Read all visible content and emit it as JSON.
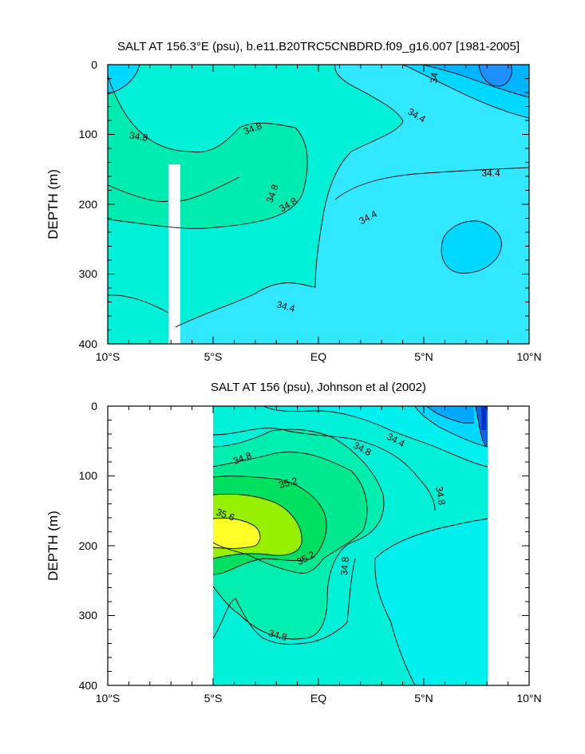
{
  "charts": [
    {
      "title": "SALT AT 156.3°E (psu), b.e11.B20TRC5CNBDRD.f09_g16.007 [1981-2005]",
      "ylabel": "DEPTH (m)",
      "x_ticks": [
        "10°S",
        "5°S",
        "EQ",
        "5°N",
        "10°N"
      ],
      "y_ticks": [
        "0",
        "100",
        "200",
        "300",
        "400"
      ],
      "contour_labels": [
        "34",
        "34.4",
        "34.8",
        "34.8",
        "34.8",
        "34.8",
        "34.4",
        "34.4",
        "34.4"
      ]
    },
    {
      "title": "SALT AT 156 (psu), Johnson et al (2002)",
      "ylabel": "DEPTH (m)",
      "x_ticks": [
        "10°S",
        "5°S",
        "EQ",
        "5°N",
        "10°N"
      ],
      "y_ticks": [
        "0",
        "100",
        "200",
        "300",
        "400"
      ],
      "contour_labels": [
        "34.8",
        "34.8",
        "34.4",
        "35.2",
        "35.6",
        "35.2",
        "34.8",
        "34.8",
        "34.8"
      ]
    }
  ],
  "chart_data": [
    {
      "type": "heatmap",
      "subtype": "filled-contour",
      "title": "SALT AT 156.3°E (psu), b.e11.B20TRC5CNBDRD.f09_g16.007 [1981-2005]",
      "xlabel": "",
      "ylabel": "DEPTH (m)",
      "xlim": [
        -10,
        10
      ],
      "ylim": [
        400,
        0
      ],
      "x_ticks": [
        -10,
        -5,
        0,
        5,
        10
      ],
      "y_ticks": [
        0,
        100,
        200,
        300,
        400
      ],
      "contour_interval": 0.2,
      "colors": {
        "33.8-34.0": "#1e90ff",
        "34.0-34.2": "#00b4ff",
        "34.2-34.4": "#00d8ff",
        "34.4-34.6": "#30e8ff",
        "34.6-34.8": "#00f0d8",
        "34.8-35.0": "#00ebb0"
      },
      "levels_labeled": [
        34.0,
        34.4,
        34.8
      ],
      "features": [
        {
          "value": 34.85,
          "location": "x -10 to -1, depth 80-250 m (salinity maximum core)"
        },
        {
          "value": 34.0,
          "location": "x 6 to 10, depth 0-50 m (surface fresh pool)"
        },
        {
          "value": 34.3,
          "location": "x 6 to 9, depth 240-300 m (subsurface minimum)"
        }
      ]
    },
    {
      "type": "heatmap",
      "subtype": "filled-contour",
      "title": "SALT AT 156 (psu), Johnson et al (2002)",
      "xlabel": "",
      "ylabel": "DEPTH (m)",
      "xlim": [
        -10,
        10
      ],
      "ylim": [
        400,
        0
      ],
      "data_extent_x": [
        -5,
        8
      ],
      "x_ticks": [
        -10,
        -5,
        0,
        5,
        10
      ],
      "y_ticks": [
        0,
        100,
        200,
        300,
        400
      ],
      "contour_interval": 0.2,
      "colors": {
        "<34.0": "#1464e6",
        "34.0-34.2": "#00a8ff",
        "34.2-34.4": "#00d8ff",
        "34.4-34.6": "#00f0f0",
        "34.6-34.8": "#00f0d8",
        "34.8-35.0": "#00eeb0",
        "35.0-35.2": "#00e890",
        "35.2-35.4": "#00e060",
        "35.4-35.6": "#96f000",
        "35.6-35.8": "#ffff28"
      },
      "levels_labeled": [
        34.4,
        34.8,
        35.2,
        35.6
      ],
      "features": [
        {
          "value": 35.7,
          "location": "x -5 to -3.5, depth 160-200 m (salinity maximum core)"
        },
        {
          "value": 34.0,
          "location": "x 6 to 8, depth 0-60 m (surface fresh pool)"
        },
        {
          "value": 34.5,
          "location": "x 3 to 8, depth 210-400 m"
        }
      ]
    }
  ]
}
